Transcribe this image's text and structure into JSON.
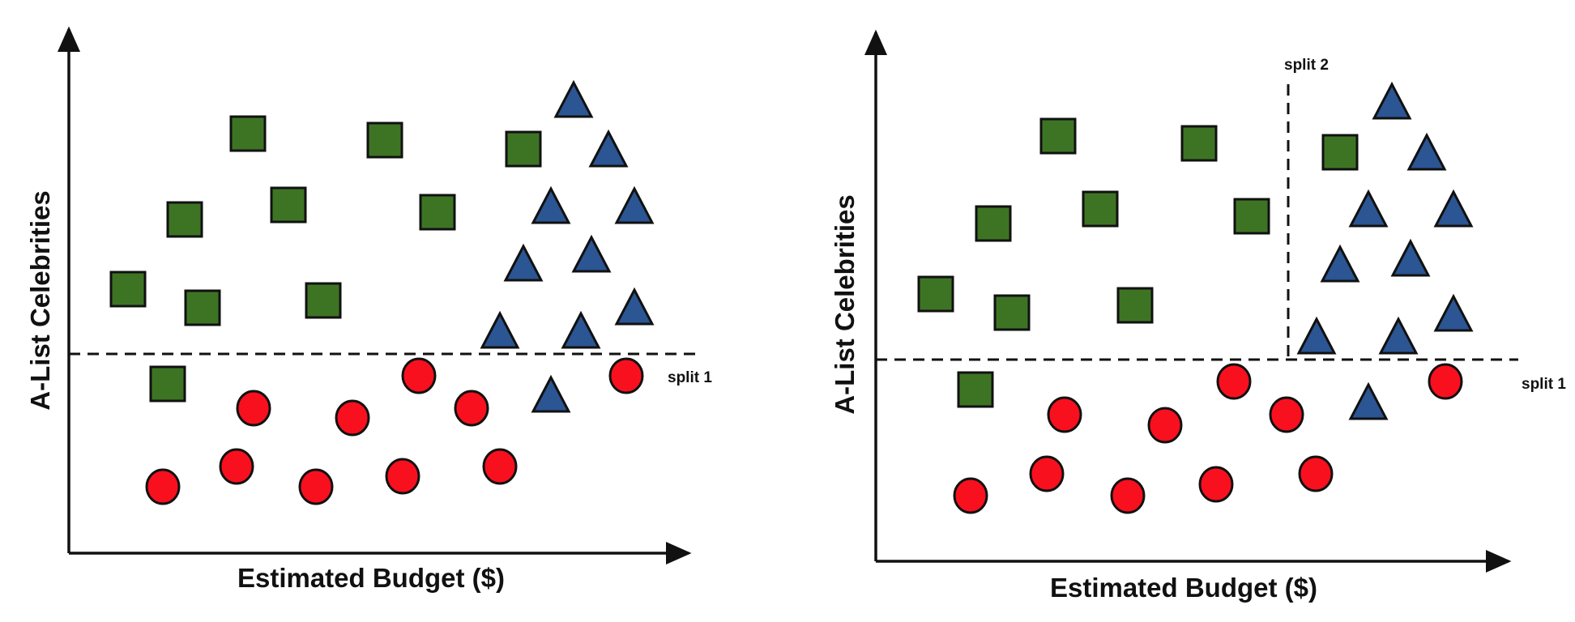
{
  "panels": [
    {
      "x_axis_label": "Estimated Budget ($)",
      "y_axis_label": "A-List Celebrities",
      "split_labels": [
        "split 1"
      ]
    },
    {
      "x_axis_label": "Estimated Budget ($)",
      "y_axis_label": "A-List Celebrities",
      "split_labels": [
        "split 1",
        "split 2"
      ]
    }
  ],
  "colors": {
    "square": "#3d7424",
    "triangle": "#2b5593",
    "circle": "#f8101e",
    "outline": "#111111"
  },
  "marker_shapes": [
    "square",
    "triangle",
    "circle"
  ]
}
